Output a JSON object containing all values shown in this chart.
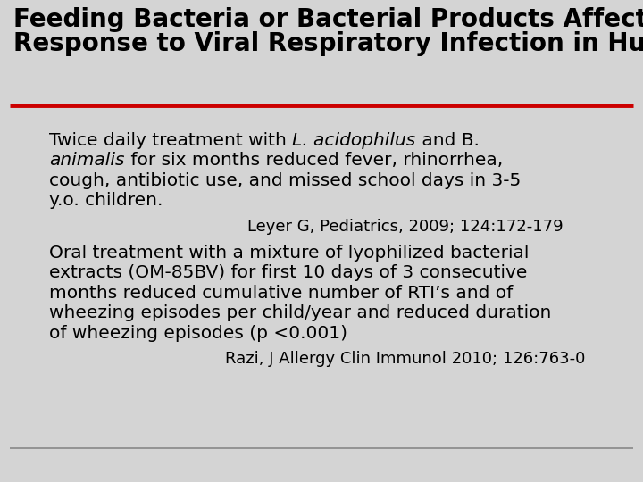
{
  "title_line1": "Feeding Bacteria or Bacterial Products Affects",
  "title_line2": "Response to Viral Respiratory Infection in Humans",
  "title_fontsize": 20,
  "title_color": "#000000",
  "background_color": "#d4d4d4",
  "red_line_color": "#cc0000",
  "bottom_line_color": "#888888",
  "bullet1_line1_pre": "Twice daily treatment with ",
  "bullet1_line1_italic": "L. acidophilus",
  "bullet1_line1_post": " and B.",
  "bullet1_line2_italic": "animalis",
  "bullet1_line2_post": " for six months reduced fever, rhinorrhea,",
  "bullet1_line3": "cough, antibiotic use, and missed school days in 3-5",
  "bullet1_line4": "y.o. children.",
  "bullet1_ref": "Leyer G, Pediatrics, 2009; 124:172-179",
  "bullet2_line1": "Oral treatment with a mixture of lyophilized bacterial",
  "bullet2_line2": "extracts (OM-85BV) for first 10 days of 3 consecutive",
  "bullet2_line3": "months reduced cumulative number of RTI’s and of",
  "bullet2_line4": "wheezing episodes per child/year and reduced duration",
  "bullet2_line5": "of wheezing episodes (p <0.001)",
  "bullet2_ref": "Razi, J Allergy Clin Immunol 2010; 126:763-0",
  "body_fontsize": 14.5,
  "ref_fontsize": 13,
  "font_family": "DejaVu Sans"
}
